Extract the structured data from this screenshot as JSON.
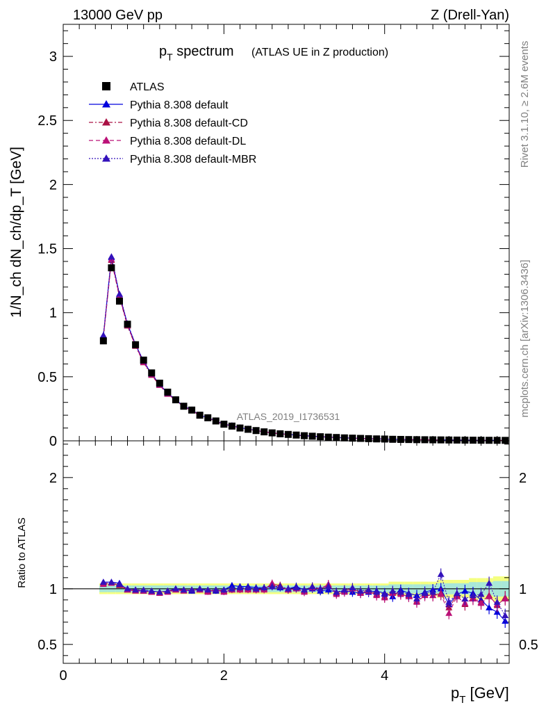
{
  "header": {
    "energy_label": "13000 GeV pp",
    "process_label": "Z (Drell-Yan)"
  },
  "side_text": {
    "rivet": "Rivet 3.1.10, ≥ 2.6M events",
    "mcplots": "mcplots.cern.ch [arXiv:1306.3436]"
  },
  "watermark": "ATLAS_2019_I1736531",
  "title": {
    "main_p": "p",
    "main_sub": "T",
    "main_rest": " spectrum",
    "subtitle": "(ATLAS UE in Z production)"
  },
  "axes": {
    "ylabel_main": "1/N_ch dN_ch/dp_T [GeV]",
    "ylabel_ratio": "Ratio to ATLAS",
    "xlabel_p": "p",
    "xlabel_sub": "T",
    "xlabel_rest": " [GeV]"
  },
  "legend": [
    {
      "label": "ATLAS",
      "color": "#000000",
      "marker": "square",
      "line": "none"
    },
    {
      "label": "Pythia 8.308 default",
      "color": "#0000dd",
      "marker": "triangle",
      "line": "solid"
    },
    {
      "label": "Pythia 8.308 default-CD",
      "color": "#aa1144",
      "marker": "triangle",
      "line": "dashdot"
    },
    {
      "label": "Pythia 8.308 default-DL",
      "color": "#bb1177",
      "marker": "triangle",
      "line": "dashed"
    },
    {
      "label": "Pythia 8.308 default-MBR",
      "color": "#3311bb",
      "marker": "triangle",
      "line": "dotted"
    }
  ],
  "chart_data": {
    "type": "scatter",
    "main": {
      "xlim": [
        0,
        5.55
      ],
      "ylim": [
        0,
        3.25
      ],
      "x_ticks": [
        0,
        2,
        4
      ],
      "y_ticks": [
        0,
        0.5,
        1,
        1.5,
        2,
        2.5,
        3
      ],
      "y_tick_labels": [
        "0",
        "0.5",
        "1",
        "1.5",
        "2",
        "2.5",
        "3"
      ],
      "x": [
        0.5,
        0.6,
        0.7,
        0.8,
        0.9,
        1.0,
        1.1,
        1.2,
        1.3,
        1.4,
        1.5,
        1.6,
        1.7,
        1.8,
        1.9,
        2.0,
        2.1,
        2.2,
        2.3,
        2.4,
        2.5,
        2.6,
        2.7,
        2.8,
        2.9,
        3.0,
        3.1,
        3.2,
        3.3,
        3.4,
        3.5,
        3.6,
        3.7,
        3.8,
        3.9,
        4.0,
        4.1,
        4.2,
        4.3,
        4.4,
        4.5,
        4.6,
        4.7,
        4.8,
        4.9,
        5.0,
        5.1,
        5.2,
        5.3,
        5.4,
        5.5
      ],
      "series": [
        {
          "name": "ATLAS",
          "values": [
            0.78,
            1.35,
            1.09,
            0.91,
            0.75,
            0.63,
            0.53,
            0.45,
            0.38,
            0.32,
            0.27,
            0.24,
            0.2,
            0.18,
            0.155,
            0.13,
            0.115,
            0.1,
            0.09,
            0.08,
            0.07,
            0.062,
            0.055,
            0.05,
            0.045,
            0.04,
            0.036,
            0.032,
            0.029,
            0.026,
            0.023,
            0.021,
            0.019,
            0.017,
            0.015,
            0.014,
            0.012,
            0.011,
            0.01,
            0.009,
            0.0085,
            0.0078,
            0.0072,
            0.0065,
            0.006,
            0.0055,
            0.005,
            0.0046,
            0.0042,
            0.0039,
            0.0036
          ]
        },
        {
          "name": "Pythia 8.308 default",
          "values": [
            0.82,
            1.43,
            1.14,
            0.91,
            0.75,
            0.62,
            0.52,
            0.44,
            0.37,
            0.32,
            0.27,
            0.24,
            0.2,
            0.18,
            0.155,
            0.13,
            0.118,
            0.102,
            0.092,
            0.081,
            0.071,
            0.063,
            0.055,
            0.05,
            0.045,
            0.04,
            0.036,
            0.032,
            0.029,
            0.026,
            0.023,
            0.021,
            0.019,
            0.017,
            0.015,
            0.014,
            0.012,
            0.011,
            0.01,
            0.009,
            0.0085,
            0.0078,
            0.0072,
            0.0065,
            0.006,
            0.0055,
            0.005,
            0.0046,
            0.0042,
            0.0039,
            0.0036
          ]
        }
      ]
    },
    "ratio": {
      "ylim": [
        0.33,
        2.33
      ],
      "y_ticks": [
        0.5,
        1,
        2
      ],
      "y_tick_labels": [
        "0.5",
        "1",
        "2"
      ],
      "x_tick_labels": [
        "0",
        "2",
        "4"
      ],
      "band_halfwidth": [
        0.03,
        0.03,
        0.03,
        0.03,
        0.03,
        0.03,
        0.03,
        0.03,
        0.03,
        0.03,
        0.03,
        0.03,
        0.03,
        0.03,
        0.03,
        0.03,
        0.03,
        0.03,
        0.03,
        0.03,
        0.03,
        0.03,
        0.03,
        0.03,
        0.03,
        0.03,
        0.03,
        0.03,
        0.03,
        0.03,
        0.03,
        0.03,
        0.03,
        0.03,
        0.03,
        0.03,
        0.04,
        0.04,
        0.04,
        0.04,
        0.04,
        0.04,
        0.05,
        0.05,
        0.05,
        0.05,
        0.06,
        0.06,
        0.06,
        0.07,
        0.07
      ],
      "series": [
        {
          "name": "Pythia 8.308 default",
          "values": [
            1.06,
            1.06,
            1.05,
            0.99,
            0.99,
            0.98,
            0.98,
            0.97,
            0.98,
            1.0,
            0.99,
            0.98,
            1.0,
            0.98,
            0.98,
            0.99,
            1.03,
            1.02,
            1.02,
            1.01,
            1.01,
            1.02,
            1.01,
            1.0,
            1.02,
            0.99,
            1.0,
            0.98,
            0.99,
            0.97,
            0.98,
            0.97,
            0.96,
            0.97,
            0.98,
            0.96,
            0.93,
            0.99,
            0.96,
            0.94,
            0.97,
            0.99,
            1.0,
            0.86,
            0.95,
            0.98,
            0.96,
            0.9,
            0.83,
            0.79,
            0.71
          ]
        },
        {
          "name": "Pythia 8.308 default-CD",
          "values": [
            1.05,
            1.05,
            1.03,
            0.99,
            0.99,
            0.98,
            0.97,
            0.97,
            0.98,
            0.99,
            0.99,
            0.99,
            0.99,
            0.98,
            0.99,
            0.98,
            0.99,
            1.0,
            1.0,
            0.99,
            1.0,
            1.04,
            1.03,
            0.99,
            1.0,
            0.98,
            1.02,
            1.0,
            1.03,
            0.96,
            0.99,
            1.0,
            0.97,
            0.99,
            0.95,
            0.93,
            0.97,
            0.96,
            0.94,
            0.89,
            0.95,
            0.94,
            0.96,
            0.83,
            0.94,
            0.86,
            0.92,
            0.88,
            0.94,
            0.85,
            0.92
          ]
        },
        {
          "name": "Pythia 8.308 default-DL",
          "values": [
            1.04,
            1.05,
            1.04,
            0.99,
            0.98,
            0.98,
            0.97,
            0.96,
            0.97,
            0.99,
            0.98,
            0.99,
            0.99,
            0.97,
            0.99,
            0.97,
            0.99,
            0.99,
            0.99,
            0.99,
            0.99,
            1.05,
            1.02,
            0.99,
            1.0,
            0.97,
            1.01,
            1.0,
            1.04,
            0.95,
            0.97,
            1.0,
            0.96,
            0.98,
            0.94,
            0.92,
            0.96,
            0.95,
            0.93,
            0.88,
            0.94,
            0.94,
            0.95,
            0.78,
            0.93,
            0.87,
            0.91,
            0.87,
            0.93,
            0.86,
            0.91
          ]
        },
        {
          "name": "Pythia 8.308 default-MBR",
          "values": [
            1.06,
            1.06,
            1.04,
            1.0,
            0.99,
            0.99,
            0.98,
            0.97,
            0.98,
            1.0,
            0.99,
            0.99,
            1.0,
            0.99,
            0.99,
            0.99,
            1.0,
            1.01,
            1.01,
            1.0,
            1.01,
            1.02,
            1.02,
            1.0,
            1.01,
            0.99,
            1.02,
            1.0,
            1.02,
            0.97,
            0.99,
            1.01,
            0.98,
            0.99,
            0.97,
            0.95,
            0.98,
            0.97,
            0.95,
            0.91,
            0.96,
            0.97,
            1.13,
            0.88,
            0.96,
            0.91,
            0.94,
            0.95,
            1.05,
            0.88,
            0.76
          ]
        }
      ]
    },
    "colors": {
      "atlas": "#000000",
      "default": "#0000dd",
      "cd": "#aa1144",
      "dl": "#bb1177",
      "mbr": "#3311bb",
      "band_inner": "#a8e8d8",
      "band_outer": "#f4ff80"
    }
  }
}
